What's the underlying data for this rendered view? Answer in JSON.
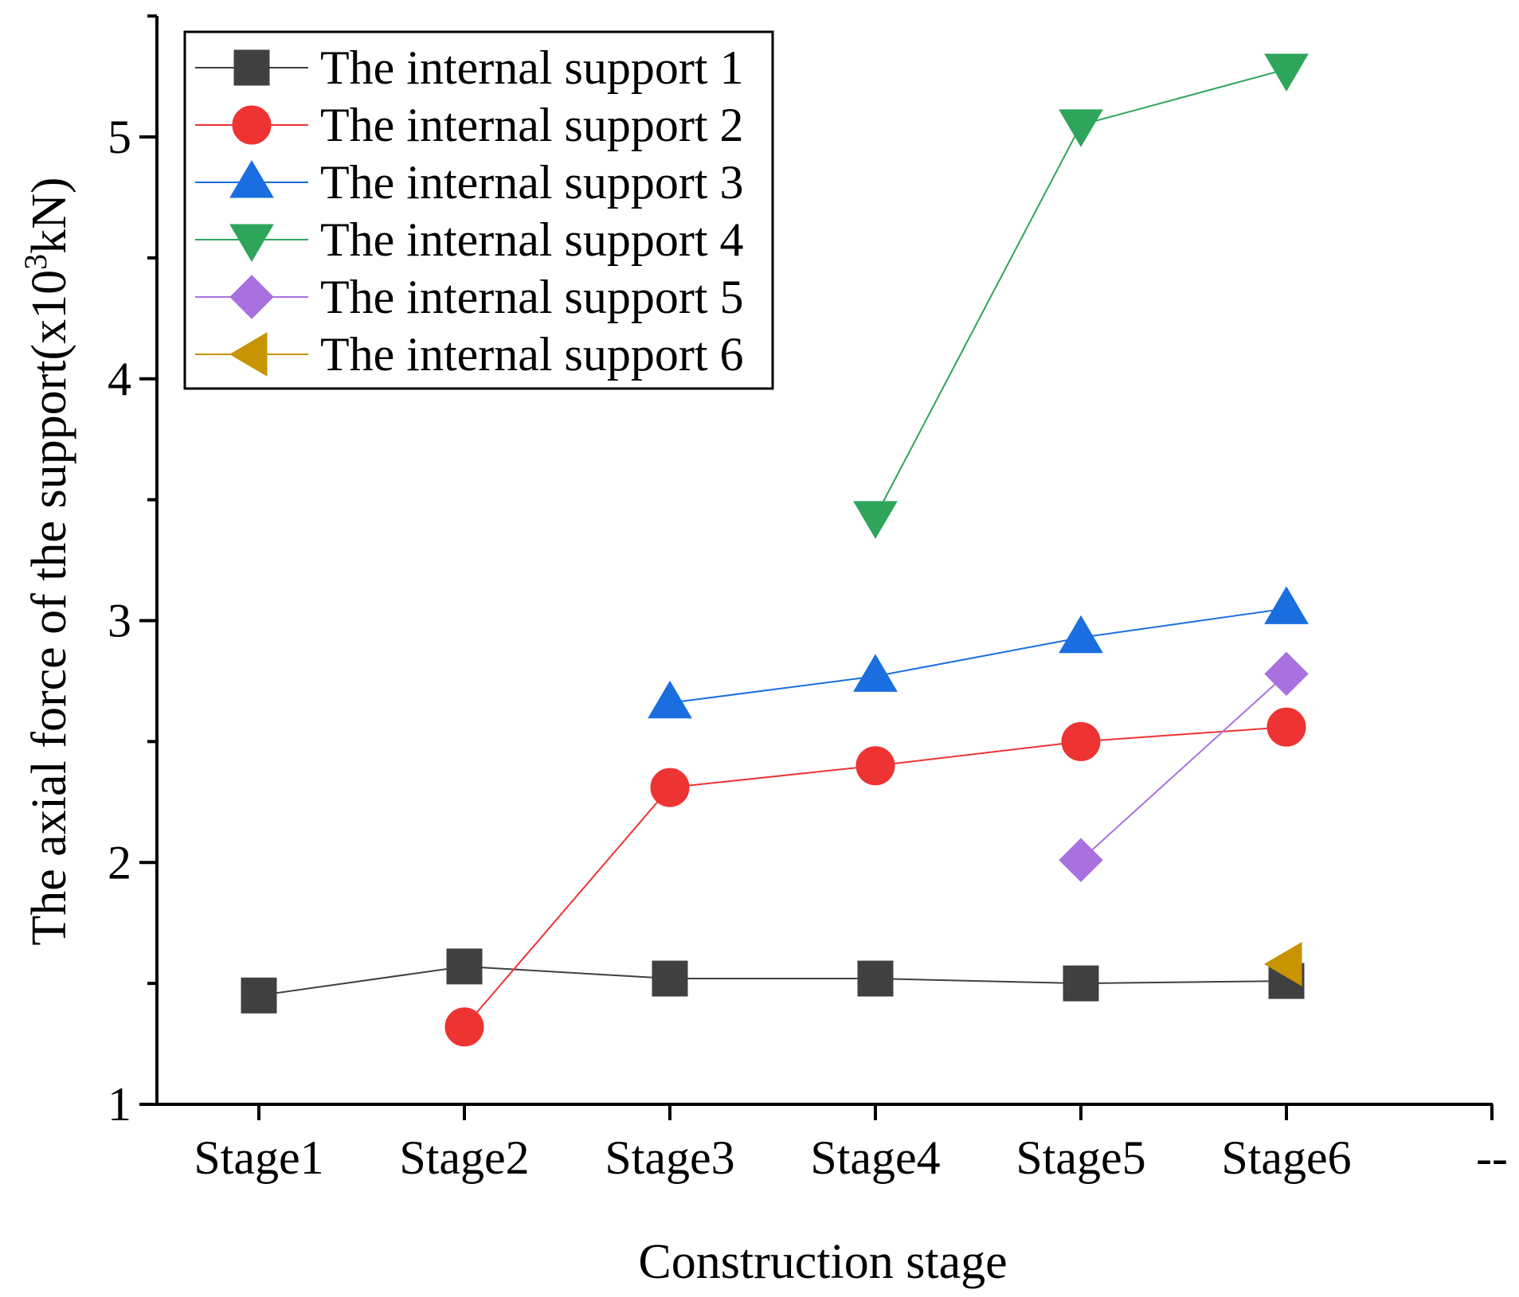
{
  "chart_data": {
    "type": "line",
    "xlabel": "Construction stage",
    "ylabel_parts": {
      "before": "The axial force of the support(x10",
      "sup": "3",
      "after": "kN)"
    },
    "categories": [
      "Stage1",
      "Stage2",
      "Stage3",
      "Stage4",
      "Stage5",
      "Stage6",
      "--"
    ],
    "ylim": [
      1,
      5.5
    ],
    "yticks": [
      1,
      2,
      3,
      4,
      5
    ],
    "legend_position": "top-left",
    "series": [
      {
        "name": "The internal support 1",
        "color": "#404040",
        "marker": "square",
        "values": [
          1.45,
          1.57,
          1.52,
          1.52,
          1.5,
          1.51,
          null
        ]
      },
      {
        "name": "The internal support 2",
        "color": "#ee3333",
        "marker": "circle",
        "values": [
          null,
          1.32,
          2.31,
          2.4,
          2.5,
          2.56,
          null
        ]
      },
      {
        "name": "The internal support 3",
        "color": "#1a6ee0",
        "marker": "triangle-up",
        "values": [
          null,
          null,
          2.66,
          2.77,
          2.93,
          3.05,
          null
        ]
      },
      {
        "name": "The internal support 4",
        "color": "#2ea55a",
        "marker": "triangle-down",
        "values": [
          null,
          null,
          null,
          3.43,
          5.05,
          5.28,
          null
        ]
      },
      {
        "name": "The internal support 5",
        "color": "#a970e0",
        "marker": "diamond",
        "values": [
          null,
          null,
          null,
          null,
          2.01,
          2.78,
          null
        ]
      },
      {
        "name": "The internal support 6",
        "color": "#c79400",
        "marker": "triangle-left",
        "values": [
          null,
          null,
          null,
          null,
          null,
          1.58,
          null
        ]
      }
    ]
  }
}
